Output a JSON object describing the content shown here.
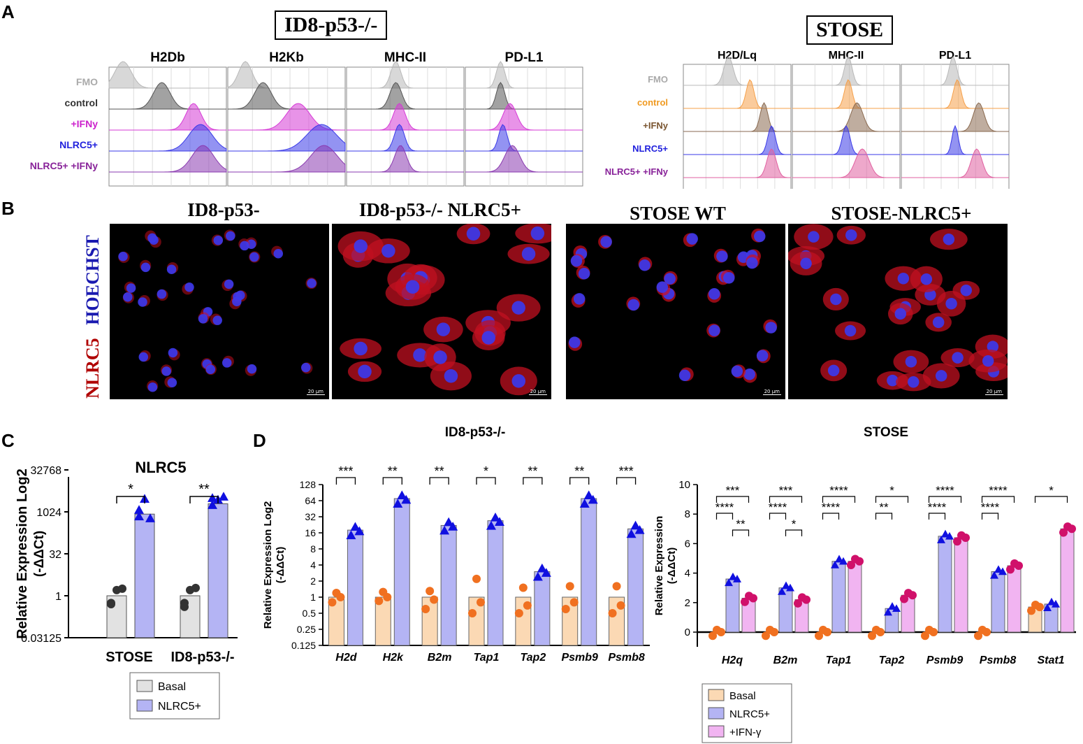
{
  "panel_letters": {
    "a": "A",
    "b": "B",
    "c": "C",
    "d": "D"
  },
  "panel_a": {
    "left": {
      "title": "ID8-p53-/-",
      "columns": [
        "H2Db",
        "H2Kb",
        "MHC-II",
        "PD-L1"
      ],
      "rows": [
        "FMO",
        "control",
        "+IFNy",
        "NLRC5+",
        "NLRC5+ +IFNy"
      ],
      "row_colors": [
        "#b8b8b8",
        "#555555",
        "#d63ad6",
        "#3a3ae8",
        "#8a3ab0"
      ],
      "label_colors": [
        "#aaaaaa",
        "#333333",
        "#cc22cc",
        "#2222dd",
        "#882299"
      ]
    },
    "right": {
      "title": "STOSE",
      "columns": [
        "H2D/Lq",
        "MHC-II",
        "PD-L1"
      ],
      "rows": [
        "FMO",
        "control",
        "+IFNy",
        "NLRC5+",
        "NLRC5+ +IFNy"
      ],
      "row_colors": [
        "#b8b8b8",
        "#f5a04a",
        "#8a6a50",
        "#3a3ae8",
        "#e060a0"
      ],
      "label_colors": [
        "#aaaaaa",
        "#f09a20",
        "#7a5530",
        "#2222dd",
        "#882299"
      ]
    }
  },
  "panel_b": {
    "titles": [
      "ID8-p53-",
      "ID8-p53-/- NLRC5+",
      "STOSE WT",
      "STOSE-NLRC5+"
    ],
    "stain_label_red": "NLRC5",
    "stain_label_blue": "HOECHST",
    "scale_bar": "20 µm"
  },
  "chart_data": [
    {
      "id": "C",
      "type": "bar",
      "title": "NLRC5",
      "ylabel": "Relative Expression Log2 (-ΔΔCt)",
      "yscale": "log2",
      "ylim": [
        0.03125,
        32768
      ],
      "yticks": [
        "32768",
        "1024",
        "32",
        "1",
        "0.03125"
      ],
      "categories": [
        "STOSE",
        "ID8-p53-/-"
      ],
      "series": [
        {
          "name": "Basal",
          "color": "#e2e2e2",
          "values": [
            1,
            1
          ],
          "points": [
            [
              0.55,
              1.6,
              1.8,
              0.5
            ],
            [
              0.55,
              1.6,
              1.9,
              0.4
            ]
          ]
        },
        {
          "name": "NLRC5+",
          "color": "#b4b4f4",
          "values": [
            850,
            2000
          ],
          "points": [
            [
              1200,
              3000,
              600,
              700
            ],
            [
              3200,
              2800,
              3600,
              1800
            ]
          ]
        }
      ],
      "significance": [
        "*",
        "**"
      ],
      "legend": [
        "Basal",
        "NLRC5+"
      ]
    },
    {
      "id": "D-ID8",
      "type": "bar",
      "title": "ID8-p53-/-",
      "ylabel": "Relative Expression Log2 (-ΔΔCt)",
      "yscale": "log2",
      "ylim": [
        0.125,
        128
      ],
      "yticks": [
        "128",
        "64",
        "32",
        "16",
        "8",
        "4",
        "2",
        "1",
        "0.5",
        "0.25",
        "0.125"
      ],
      "categories": [
        "H2d",
        "H2k",
        "B2m",
        "Tap1",
        "Tap2",
        "Psmb9",
        "Psmb8"
      ],
      "series": [
        {
          "name": "Basal",
          "color": "#fbd9b4",
          "values": [
            1,
            1,
            1,
            1,
            1,
            1,
            1
          ]
        },
        {
          "name": "NLRC5+",
          "color": "#b4b4f4",
          "values": [
            18,
            70,
            22,
            27,
            3,
            70,
            19
          ]
        }
      ],
      "significance": [
        "***",
        "**",
        "**",
        "*",
        "**",
        "**",
        "***"
      ]
    },
    {
      "id": "D-STOSE",
      "type": "bar",
      "title": "STOSE",
      "ylabel": "Relative Expression (-ΔΔCt)",
      "ylim": [
        0,
        10
      ],
      "yticks": [
        "10",
        "8",
        "6",
        "4",
        "2",
        "0"
      ],
      "categories": [
        "H2q",
        "B2m",
        "Tap1",
        "Tap2",
        "Psmb9",
        "Psmb8",
        "Stat1"
      ],
      "series": [
        {
          "name": "Basal",
          "color": "#fbd9b4",
          "values": [
            0,
            0,
            0,
            0,
            0,
            0,
            1.7
          ]
        },
        {
          "name": "NLRC5+",
          "color": "#b4b4f4",
          "values": [
            3.6,
            3.0,
            4.8,
            1.6,
            6.5,
            4.1,
            1.9
          ]
        },
        {
          "name": "+IFN-γ",
          "color": "#f1b4f1",
          "values": [
            2.3,
            2.2,
            4.8,
            2.5,
            6.4,
            4.5,
            7.0
          ]
        }
      ],
      "significance_top": [
        "***",
        "***",
        "****",
        "*",
        "****",
        "****",
        "*"
      ],
      "significance_mid": [
        "****",
        "****",
        "****",
        "**",
        "****",
        "****",
        ""
      ],
      "significance_low": [
        "**",
        "*",
        "",
        "",
        "",
        "",
        ""
      ],
      "legend": [
        "Basal",
        "NLRC5+",
        "+IFN-γ"
      ]
    }
  ]
}
